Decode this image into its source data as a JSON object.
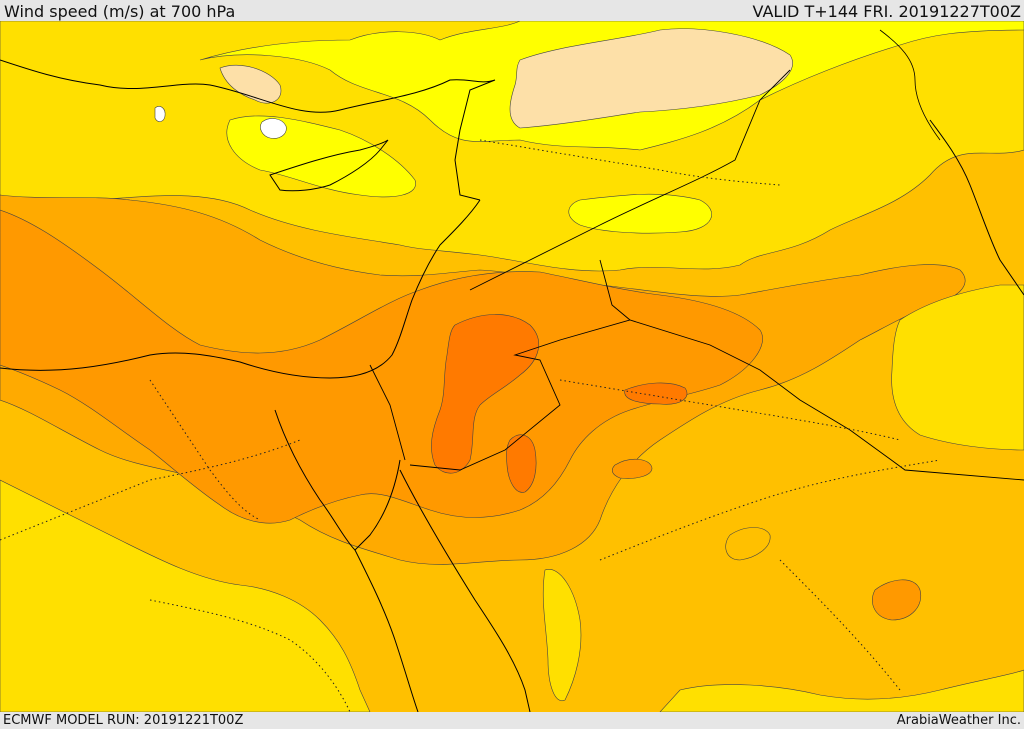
{
  "header": {
    "title": "Wind speed (m/s) at 700 hPa",
    "valid": "VALID T+144 FRI. 20191227T00Z"
  },
  "footer": {
    "model_run": "ECMWF MODEL RUN: 20191221T00Z",
    "credit": "ArabiaWeather Inc."
  },
  "colors": {
    "light_yellow": "#ffff00",
    "pale_tan": "#fde0a8",
    "white": "#ffffff",
    "yellow": "#ffe000",
    "gold": "#ffc000",
    "light_orange": "#ffaa00",
    "orange": "#ff9900",
    "dark_orange": "#ff7a00",
    "contour": "#333333",
    "coast": "#000000"
  }
}
